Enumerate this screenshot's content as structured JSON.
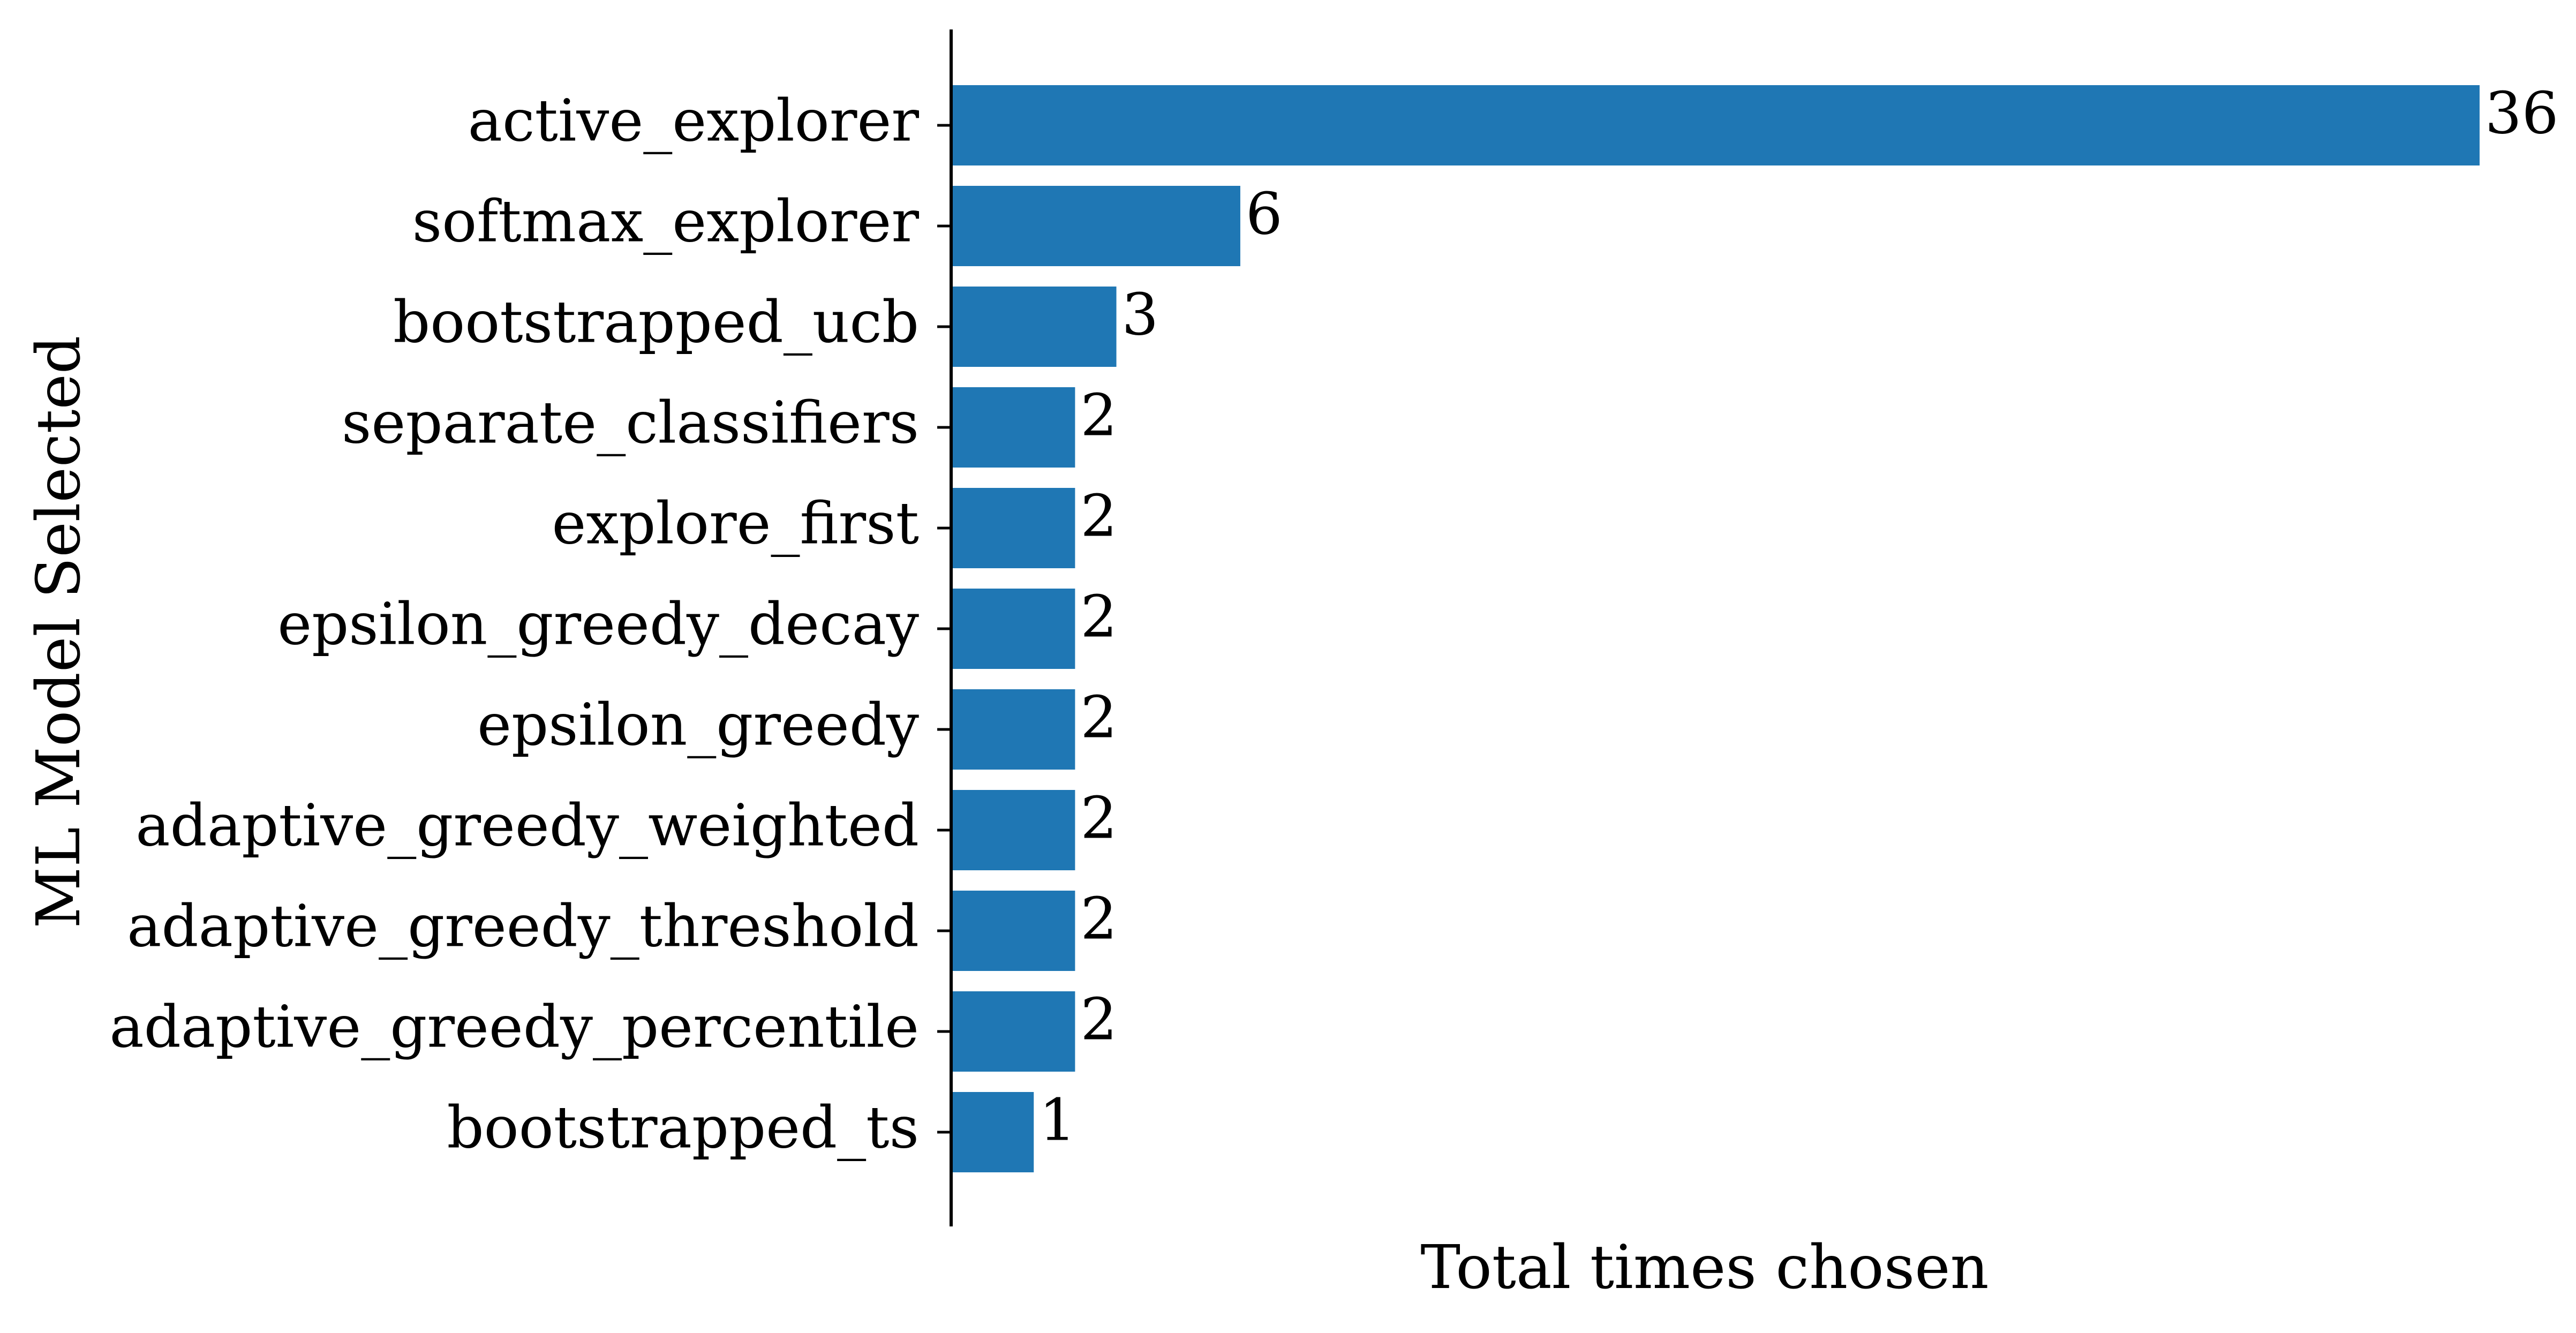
{
  "chart_data": {
    "type": "bar",
    "orientation": "horizontal",
    "title": "",
    "xlabel": "Total times chosen",
    "ylabel": "ML Model Selected",
    "categories": [
      "active_explorer",
      "softmax_explorer",
      "bootstrapped_ucb",
      "separate_classifiers",
      "explore_first",
      "epsilon_greedy_decay",
      "epsilon_greedy",
      "adaptive_greedy_weighted",
      "adaptive_greedy_threshold",
      "adaptive_greedy_percentile",
      "bootstrapped_ts"
    ],
    "values": [
      36,
      6,
      3,
      2,
      2,
      2,
      2,
      2,
      2,
      2,
      1
    ],
    "value_labels": [
      "36",
      "6",
      "3",
      "2",
      "2",
      "2",
      "2",
      "2",
      "2",
      "2",
      "1"
    ],
    "xlim": [
      -1,
      36
    ],
    "bar_color": "#1f77b4",
    "grid": false,
    "legend": "none",
    "x_ticks_shown": false
  }
}
